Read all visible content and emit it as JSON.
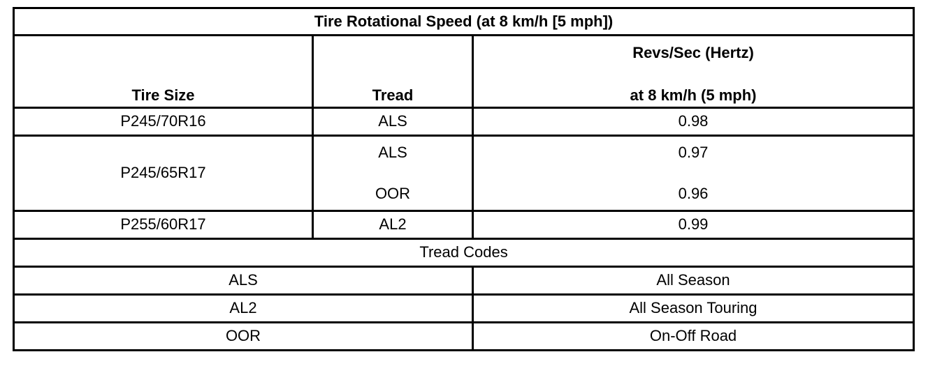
{
  "title": "Tire Rotational Speed (at 8 km/h [5 mph])",
  "headers": {
    "tire_size": "Tire Size",
    "tread": "Tread",
    "revs_line1": "Revs/Sec (Hertz)",
    "revs_line2": "at 8 km/h (5 mph)"
  },
  "rows": [
    {
      "tire_size": "P245/70R16",
      "treads": [
        "ALS"
      ],
      "revs": [
        "0.98"
      ]
    },
    {
      "tire_size": "P245/65R17",
      "treads": [
        "ALS",
        "OOR"
      ],
      "revs": [
        "0.97",
        "0.96"
      ]
    },
    {
      "tire_size": "P255/60R17",
      "treads": [
        "AL2"
      ],
      "revs": [
        "0.99"
      ]
    }
  ],
  "tread_codes": {
    "title": "Tread Codes",
    "items": [
      {
        "code": "ALS",
        "description": "All Season"
      },
      {
        "code": "AL2",
        "description": "All Season Touring"
      },
      {
        "code": "OOR",
        "description": "On-Off Road"
      }
    ]
  }
}
